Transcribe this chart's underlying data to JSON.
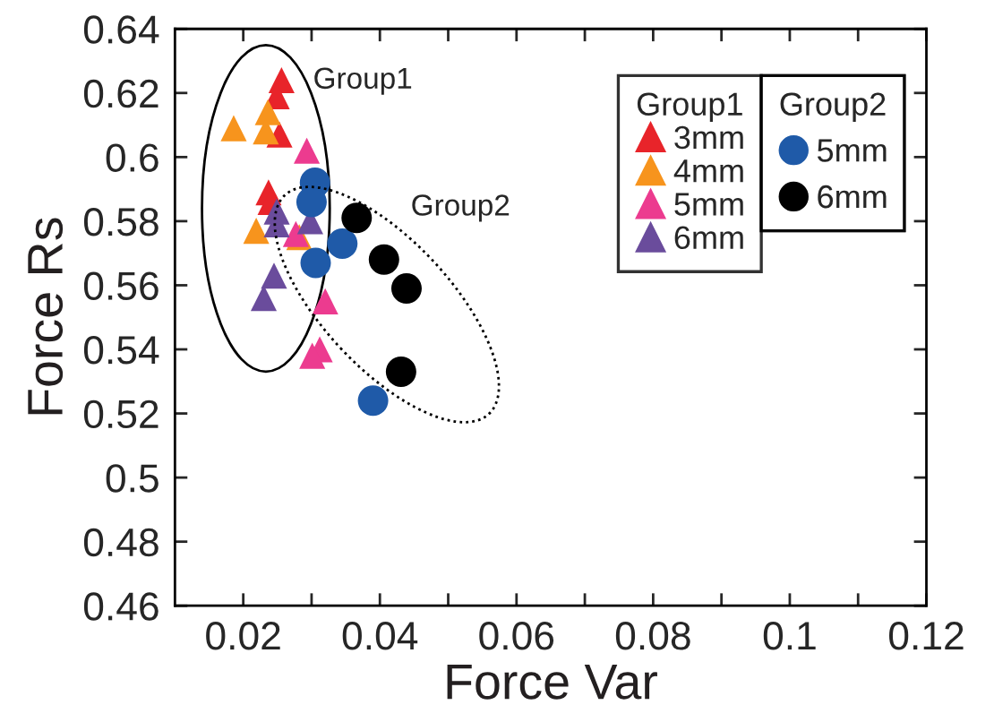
{
  "chart_data": {
    "type": "scatter",
    "xlabel": "Force Var",
    "ylabel": "Force Rs",
    "xlim": [
      0.01,
      0.12
    ],
    "ylim": [
      0.46,
      0.64
    ],
    "xticks": [
      {
        "value": 0.02,
        "label": "0.02"
      },
      {
        "value": 0.03,
        "label": null
      },
      {
        "value": 0.04,
        "label": "0.04"
      },
      {
        "value": 0.05,
        "label": null
      },
      {
        "value": 0.06,
        "label": "0.06"
      },
      {
        "value": 0.07,
        "label": null
      },
      {
        "value": 0.08,
        "label": "0.08"
      },
      {
        "value": 0.09,
        "label": null
      },
      {
        "value": 0.1,
        "label": "0.1"
      },
      {
        "value": 0.11,
        "label": null
      },
      {
        "value": 0.12,
        "label": "0.12"
      }
    ],
    "yticks": [
      0.46,
      0.48,
      0.5,
      0.52,
      0.54,
      0.56,
      0.58,
      0.6,
      0.62,
      0.64
    ],
    "grid": false,
    "legend": "top right",
    "series": [
      {
        "name": "3mm",
        "color": "#e8242a",
        "marker": "triangle",
        "x": [
          0.0256,
          0.0249,
          0.0253,
          0.0237,
          0.024
        ],
        "values": [
          0.624,
          0.619,
          0.607,
          0.589,
          0.586
        ]
      },
      {
        "name": "4mm",
        "color": "#f7941d",
        "marker": "triangle",
        "x": [
          0.0186,
          0.0236,
          0.0233,
          0.0219,
          0.0282
        ],
        "values": [
          0.609,
          0.614,
          0.608,
          0.577,
          0.575
        ]
      },
      {
        "name": "5mm",
        "color": "#ec3b8f",
        "marker": "triangle",
        "x": [
          0.0293,
          0.0277,
          0.032,
          0.0312,
          0.0301
        ],
        "values": [
          0.602,
          0.576,
          0.555,
          0.54,
          0.538
        ]
      },
      {
        "name": "6mm",
        "color": "#6a4c9c",
        "marker": "triangle",
        "x": [
          0.0249,
          0.0249,
          0.0298,
          0.0245,
          0.023
        ],
        "values": [
          0.583,
          0.579,
          0.58,
          0.563,
          0.556
        ]
      },
      {
        "name": "5mm",
        "color": "#1f5aa8",
        "marker": "circle",
        "x": [
          0.0305,
          0.03,
          0.0345,
          0.0306,
          0.039
        ],
        "values": [
          0.592,
          0.586,
          0.573,
          0.567,
          0.524
        ]
      },
      {
        "name": "6mm",
        "color": "#000000",
        "marker": "circle",
        "x": [
          0.0366,
          0.0406,
          0.0439,
          0.0431
        ],
        "values": [
          0.581,
          0.568,
          0.559,
          0.533
        ]
      }
    ],
    "annotations": [
      "Group1",
      "Group2",
      "Group1",
      "Group2"
    ]
  }
}
